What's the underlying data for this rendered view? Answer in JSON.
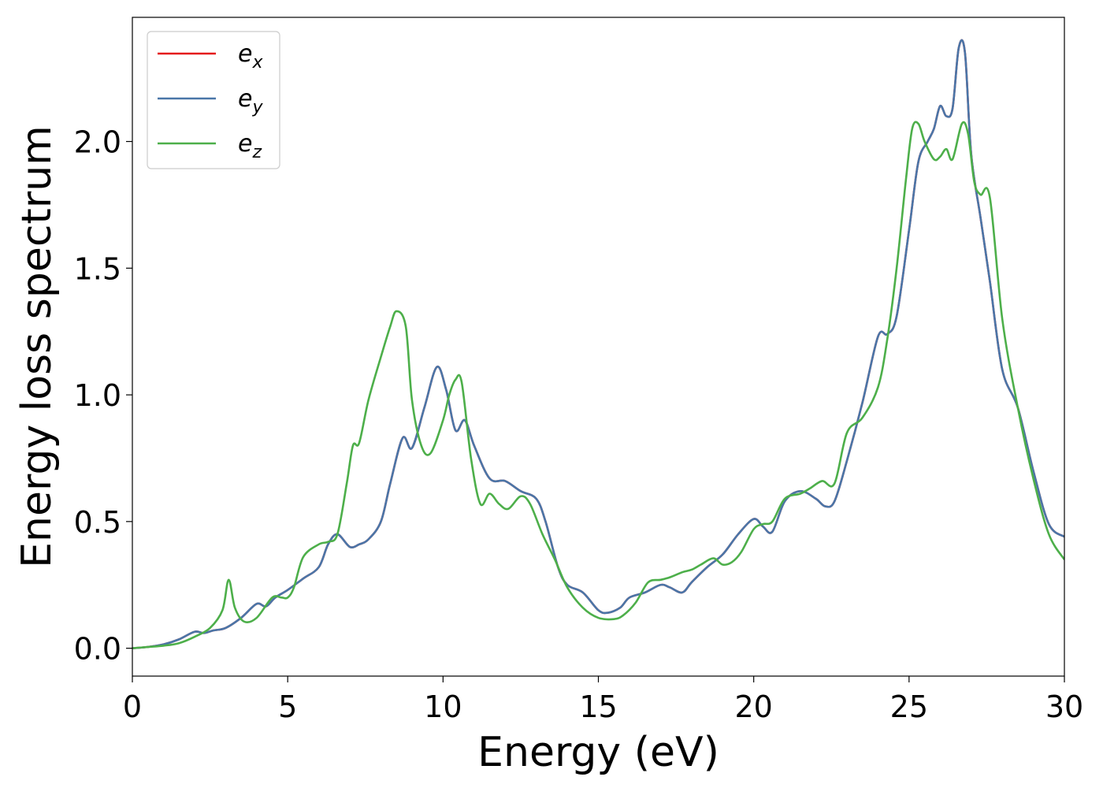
{
  "chart_data": {
    "type": "line",
    "xlabel": "Energy (eV)",
    "ylabel": "Energy loss spectrum",
    "xlim": [
      0,
      30
    ],
    "ylim": [
      -0.11,
      2.49
    ],
    "xticks": [
      0,
      5,
      10,
      15,
      20,
      25,
      30
    ],
    "xtick_labels": [
      "0",
      "5",
      "10",
      "15",
      "20",
      "25",
      "30"
    ],
    "yticks": [
      0.0,
      0.5,
      1.0,
      1.5,
      2.0
    ],
    "ytick_labels": [
      "0.0",
      "0.5",
      "1.0",
      "1.5",
      "2.0"
    ],
    "grid": false,
    "legend_position": "top-left",
    "series": [
      {
        "name": "e_x",
        "base": "e",
        "sub": "x",
        "color": "#e41a1c",
        "x": [
          0,
          0.5,
          1,
          1.5,
          2,
          2.3,
          2.6,
          3,
          3.5,
          4,
          4.3,
          4.6,
          5,
          5.5,
          6,
          6.3,
          6.6,
          7,
          7.3,
          7.6,
          8,
          8.3,
          8.7,
          9,
          9.4,
          9.8,
          10.1,
          10.4,
          10.7,
          11,
          11.5,
          12,
          12.5,
          13,
          13.3,
          13.7,
          14,
          14.5,
          15,
          15.3,
          15.7,
          16,
          16.5,
          17,
          17.3,
          17.7,
          18,
          18.5,
          19,
          19.5,
          20,
          20.3,
          20.6,
          21,
          21.5,
          22,
          22.3,
          22.6,
          23,
          23.5,
          24,
          24.3,
          24.6,
          25,
          25.3,
          25.6,
          25.8,
          26,
          26.2,
          26.4,
          26.6,
          26.8,
          27,
          27.3,
          27.6,
          28,
          28.5,
          29,
          29.5,
          30
        ],
        "y": [
          0,
          0.005,
          0.015,
          0.035,
          0.065,
          0.06,
          0.07,
          0.08,
          0.12,
          0.175,
          0.165,
          0.2,
          0.23,
          0.275,
          0.32,
          0.41,
          0.45,
          0.4,
          0.41,
          0.43,
          0.5,
          0.65,
          0.83,
          0.79,
          0.95,
          1.11,
          1.02,
          0.86,
          0.9,
          0.8,
          0.67,
          0.66,
          0.62,
          0.59,
          0.5,
          0.32,
          0.25,
          0.22,
          0.15,
          0.14,
          0.16,
          0.2,
          0.22,
          0.25,
          0.24,
          0.22,
          0.26,
          0.32,
          0.37,
          0.45,
          0.51,
          0.48,
          0.46,
          0.58,
          0.62,
          0.59,
          0.56,
          0.58,
          0.74,
          0.97,
          1.23,
          1.24,
          1.31,
          1.65,
          1.92,
          2.0,
          2.05,
          2.14,
          2.1,
          2.13,
          2.37,
          2.35,
          1.95,
          1.7,
          1.45,
          1.1,
          0.95,
          0.7,
          0.49,
          0.44
        ]
      },
      {
        "name": "e_y",
        "base": "e",
        "sub": "y",
        "color": "#4a76a8",
        "x": [
          0,
          0.5,
          1,
          1.5,
          2,
          2.3,
          2.6,
          3,
          3.5,
          4,
          4.3,
          4.6,
          5,
          5.5,
          6,
          6.3,
          6.6,
          7,
          7.3,
          7.6,
          8,
          8.3,
          8.7,
          9,
          9.4,
          9.8,
          10.1,
          10.4,
          10.7,
          11,
          11.5,
          12,
          12.5,
          13,
          13.3,
          13.7,
          14,
          14.5,
          15,
          15.3,
          15.7,
          16,
          16.5,
          17,
          17.3,
          17.7,
          18,
          18.5,
          19,
          19.5,
          20,
          20.3,
          20.6,
          21,
          21.5,
          22,
          22.3,
          22.6,
          23,
          23.5,
          24,
          24.3,
          24.6,
          25,
          25.3,
          25.6,
          25.8,
          26,
          26.2,
          26.4,
          26.6,
          26.8,
          27,
          27.3,
          27.6,
          28,
          28.5,
          29,
          29.5,
          30
        ],
        "y": [
          0,
          0.005,
          0.015,
          0.035,
          0.065,
          0.06,
          0.07,
          0.08,
          0.12,
          0.175,
          0.165,
          0.2,
          0.23,
          0.275,
          0.32,
          0.41,
          0.45,
          0.4,
          0.41,
          0.43,
          0.5,
          0.65,
          0.83,
          0.79,
          0.95,
          1.11,
          1.02,
          0.86,
          0.9,
          0.8,
          0.67,
          0.66,
          0.62,
          0.59,
          0.5,
          0.32,
          0.25,
          0.22,
          0.15,
          0.14,
          0.16,
          0.2,
          0.22,
          0.25,
          0.24,
          0.22,
          0.26,
          0.32,
          0.37,
          0.45,
          0.51,
          0.48,
          0.46,
          0.58,
          0.62,
          0.59,
          0.56,
          0.58,
          0.74,
          0.97,
          1.23,
          1.24,
          1.31,
          1.65,
          1.92,
          2.0,
          2.05,
          2.14,
          2.1,
          2.13,
          2.37,
          2.35,
          1.95,
          1.7,
          1.45,
          1.1,
          0.95,
          0.7,
          0.49,
          0.44
        ]
      },
      {
        "name": "e_z",
        "base": "e",
        "sub": "z",
        "color": "#4daf4a",
        "x": [
          0,
          0.5,
          1,
          1.5,
          2,
          2.5,
          2.9,
          3.1,
          3.3,
          3.6,
          4,
          4.5,
          4.8,
          5,
          5.2,
          5.5,
          6,
          6.3,
          6.6,
          6.9,
          7.1,
          7.3,
          7.6,
          8,
          8.3,
          8.5,
          8.8,
          9,
          9.3,
          9.6,
          10,
          10.2,
          10.4,
          10.6,
          10.9,
          11.2,
          11.5,
          11.8,
          12.1,
          12.5,
          12.8,
          13.2,
          13.6,
          14,
          14.5,
          15,
          15.5,
          15.8,
          16.2,
          16.6,
          17,
          17.3,
          17.7,
          18,
          18.3,
          18.7,
          19,
          19.3,
          19.6,
          20,
          20.3,
          20.6,
          21,
          21.5,
          21.8,
          22.2,
          22.6,
          23,
          23.5,
          24,
          24.3,
          24.6,
          24.9,
          25.1,
          25.3,
          25.5,
          25.8,
          26,
          26.2,
          26.4,
          26.7,
          26.9,
          27.1,
          27.3,
          27.6,
          28,
          28.5,
          29,
          29.5,
          30
        ],
        "y": [
          0,
          0.005,
          0.01,
          0.02,
          0.045,
          0.08,
          0.15,
          0.27,
          0.16,
          0.105,
          0.12,
          0.2,
          0.2,
          0.2,
          0.24,
          0.36,
          0.41,
          0.42,
          0.45,
          0.65,
          0.8,
          0.81,
          0.98,
          1.15,
          1.27,
          1.33,
          1.27,
          0.98,
          0.8,
          0.77,
          0.9,
          1.0,
          1.06,
          1.05,
          0.75,
          0.57,
          0.61,
          0.57,
          0.55,
          0.6,
          0.57,
          0.45,
          0.35,
          0.24,
          0.16,
          0.12,
          0.115,
          0.13,
          0.18,
          0.26,
          0.27,
          0.28,
          0.3,
          0.31,
          0.33,
          0.355,
          0.33,
          0.34,
          0.38,
          0.47,
          0.49,
          0.5,
          0.59,
          0.61,
          0.63,
          0.66,
          0.65,
          0.85,
          0.91,
          1.03,
          1.22,
          1.5,
          1.85,
          2.05,
          2.07,
          2.0,
          1.93,
          1.94,
          1.97,
          1.93,
          2.07,
          2.03,
          1.84,
          1.79,
          1.78,
          1.3,
          0.95,
          0.67,
          0.45,
          0.35
        ]
      }
    ]
  }
}
